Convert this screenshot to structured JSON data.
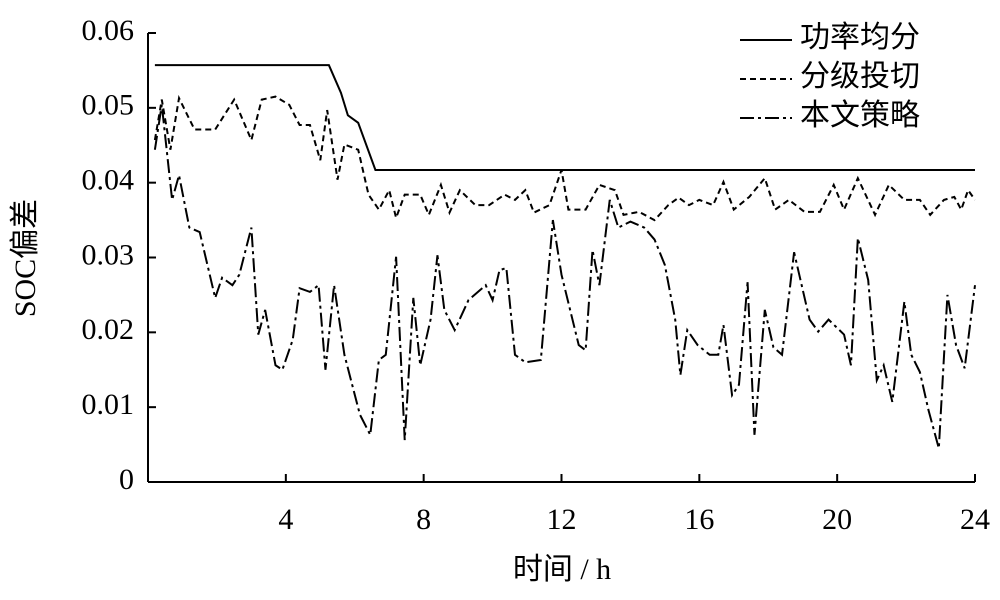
{
  "chart_data": {
    "type": "line",
    "xlabel": "时间 / h",
    "ylabel": "SOC偏差",
    "xlim": [
      0,
      24
    ],
    "xticks": [
      4,
      8,
      12,
      16,
      20,
      24
    ],
    "ylim": [
      0,
      0.06
    ],
    "yticks": [
      0,
      0.01,
      0.02,
      0.03,
      0.04,
      0.05,
      0.06
    ],
    "legend": "upper right",
    "series": [
      {
        "name": "功率均分",
        "color": "#000000",
        "dash": "solid",
        "x": [
          0.2,
          5.25,
          5.6,
          5.8,
          6.1,
          6.6,
          24
        ],
        "values": [
          0.0557,
          0.0557,
          0.052,
          0.049,
          0.048,
          0.0417,
          0.0417
        ]
      },
      {
        "name": "分级投切",
        "color": "#000000",
        "dash": "dashed",
        "x": [
          0.2,
          0.4,
          0.65,
          0.9,
          1.35,
          1.95,
          2.5,
          3.0,
          3.3,
          3.7,
          4.1,
          4.4,
          4.7,
          5.0,
          5.2,
          5.5,
          5.7,
          6.1,
          6.4,
          6.7,
          7.0,
          7.2,
          7.45,
          7.9,
          8.15,
          8.5,
          8.75,
          9.05,
          9.5,
          9.9,
          10.35,
          10.65,
          10.95,
          11.2,
          11.65,
          12.0,
          12.2,
          12.7,
          13.1,
          13.55,
          13.8,
          14.25,
          14.7,
          15.1,
          15.4,
          15.7,
          16.0,
          16.4,
          16.7,
          17.0,
          17.45,
          17.9,
          18.2,
          18.6,
          19.05,
          19.5,
          19.9,
          20.2,
          20.6,
          21.1,
          21.5,
          21.95,
          22.4,
          22.7,
          23.1,
          23.4,
          23.6,
          23.8,
          24.0
        ],
        "values": [
          0.0457,
          0.0511,
          0.0444,
          0.0513,
          0.0471,
          0.0471,
          0.0511,
          0.0457,
          0.0511,
          0.0515,
          0.0504,
          0.0477,
          0.0477,
          0.043,
          0.0497,
          0.0404,
          0.0451,
          0.0444,
          0.0384,
          0.0364,
          0.039,
          0.0353,
          0.0384,
          0.0384,
          0.0357,
          0.0397,
          0.036,
          0.039,
          0.037,
          0.037,
          0.0384,
          0.0377,
          0.039,
          0.036,
          0.037,
          0.0417,
          0.0364,
          0.0364,
          0.0397,
          0.039,
          0.0357,
          0.0361,
          0.035,
          0.037,
          0.038,
          0.037,
          0.0377,
          0.037,
          0.0401,
          0.0364,
          0.0381,
          0.0406,
          0.0364,
          0.0377,
          0.0361,
          0.0361,
          0.0397,
          0.0364,
          0.0406,
          0.0357,
          0.0397,
          0.0377,
          0.0377,
          0.0357,
          0.0377,
          0.0381,
          0.0364,
          0.039,
          0.0377
        ]
      },
      {
        "name": "本文策略",
        "color": "#000000",
        "dash": "dashdot",
        "x": [
          0.2,
          0.4,
          0.7,
          0.9,
          1.2,
          1.5,
          1.95,
          2.15,
          2.45,
          2.65,
          3.0,
          3.2,
          3.4,
          3.7,
          3.9,
          4.2,
          4.4,
          4.7,
          4.95,
          5.15,
          5.4,
          5.7,
          6.15,
          6.45,
          6.7,
          6.9,
          7.2,
          7.45,
          7.7,
          7.9,
          8.2,
          8.4,
          8.6,
          8.9,
          9.3,
          9.8,
          10.0,
          10.2,
          10.4,
          10.65,
          10.95,
          11.4,
          11.75,
          12.0,
          12.5,
          12.7,
          12.9,
          13.1,
          13.4,
          13.65,
          14.0,
          14.4,
          14.7,
          15.0,
          15.3,
          15.45,
          15.65,
          15.95,
          16.3,
          16.55,
          16.7,
          16.95,
          17.15,
          17.4,
          17.6,
          17.9,
          18.15,
          18.4,
          18.75,
          19.2,
          19.45,
          19.75,
          20.2,
          20.4,
          20.6,
          20.9,
          21.15,
          21.35,
          21.6,
          21.95,
          22.15,
          22.4,
          22.65,
          22.95,
          23.2,
          23.45,
          23.7,
          24.0
        ],
        "values": [
          0.0444,
          0.0504,
          0.0377,
          0.041,
          0.034,
          0.0334,
          0.0246,
          0.0273,
          0.0263,
          0.0277,
          0.034,
          0.0197,
          0.023,
          0.0156,
          0.015,
          0.019,
          0.0259,
          0.0254,
          0.0263,
          0.015,
          0.0263,
          0.017,
          0.009,
          0.0063,
          0.0163,
          0.017,
          0.0301,
          0.0056,
          0.0246,
          0.0156,
          0.0217,
          0.0303,
          0.023,
          0.0203,
          0.0243,
          0.0263,
          0.0243,
          0.0283,
          0.0286,
          0.017,
          0.016,
          0.0163,
          0.035,
          0.0277,
          0.0183,
          0.0176,
          0.031,
          0.0263,
          0.0377,
          0.034,
          0.0348,
          0.034,
          0.0324,
          0.029,
          0.0217,
          0.0143,
          0.0203,
          0.0183,
          0.017,
          0.017,
          0.021,
          0.0116,
          0.013,
          0.0267,
          0.0063,
          0.023,
          0.018,
          0.017,
          0.0307,
          0.0217,
          0.0201,
          0.0217,
          0.0197,
          0.0156,
          0.0326,
          0.027,
          0.0136,
          0.0156,
          0.0107,
          0.0241,
          0.017,
          0.0147,
          0.0096,
          0.0045,
          0.025,
          0.0183,
          0.0152,
          0.0263
        ]
      }
    ]
  }
}
